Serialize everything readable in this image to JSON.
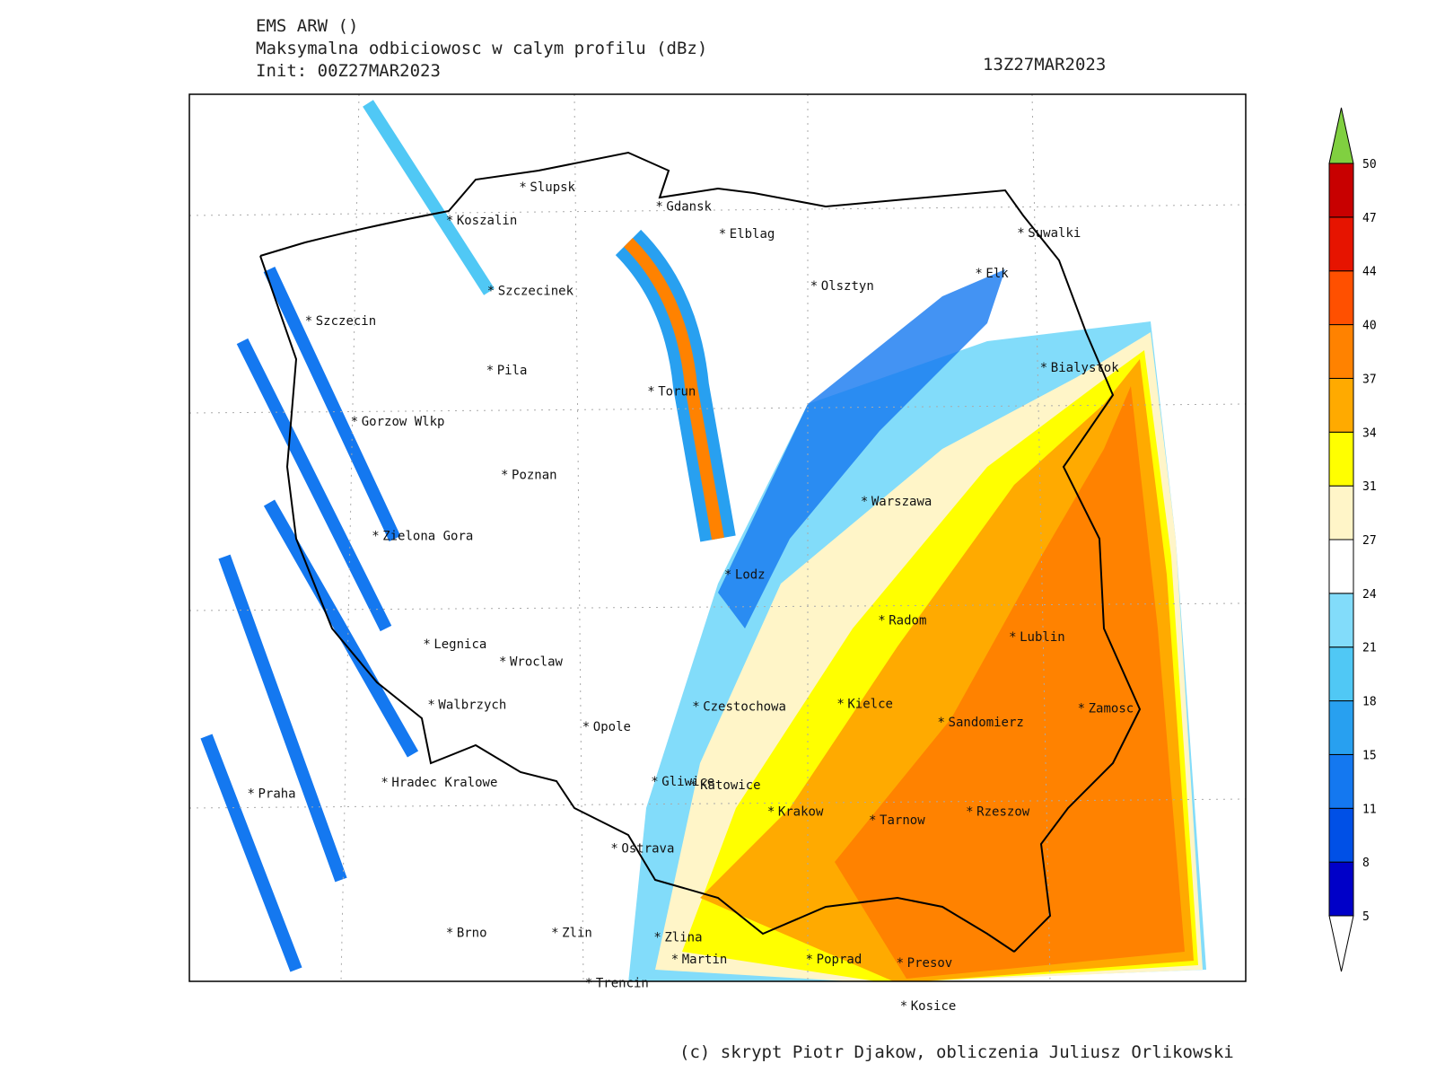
{
  "header": {
    "title": "EMS ARW ()",
    "subtitle": "Maksymalna odbiciowosc w calym profilu (dBz)",
    "init": "Init: 00Z27MAR2023",
    "valid": "13Z27MAR2023"
  },
  "map": {
    "cities": [
      "Slupsk",
      "Koszalin",
      "Gdansk",
      "Elblag",
      "Suwalki",
      "Elk",
      "Olsztyn",
      "Szczecinek",
      "Szczecin",
      "Pila",
      "Torun",
      "Bialystok",
      "Gorzow Wlkp",
      "Poznan",
      "Warszawa",
      "Zielona Gora",
      "Lodz",
      "Radom",
      "Lublin",
      "Legnica",
      "Wroclaw",
      "Czestochowa",
      "Kielce",
      "Walbrzych",
      "Zamosc",
      "Sandomierz",
      "Opole",
      "Gliwice",
      "Katowice",
      "Hradec Kralowe",
      "Praha",
      "Krakow",
      "Rzeszow",
      "Tarnow",
      "Ostrava",
      "Brno",
      "Zlin",
      "Zlina",
      "Martin",
      "Poprad",
      "Presov",
      "Trencin",
      "Kosice"
    ]
  },
  "colorbar": {
    "levels": [
      5,
      8,
      11,
      15,
      18,
      21,
      24,
      27,
      31,
      34,
      37,
      40,
      44,
      47,
      50
    ],
    "colors": [
      "#0000c8",
      "#0050e6",
      "#1478f0",
      "#28a0f0",
      "#50c8f5",
      "#82dcfa",
      "#ffffff",
      "#fff5c8",
      "#ffff00",
      "#ffaa00",
      "#ff8200",
      "#ff5000",
      "#e61400",
      "#c80000"
    ],
    "under_color": "#ffffff",
    "over_color": "#80d040"
  },
  "footer": "(c) skrypt Piotr Djakow, obliczenia Juliusz Orlikowski"
}
